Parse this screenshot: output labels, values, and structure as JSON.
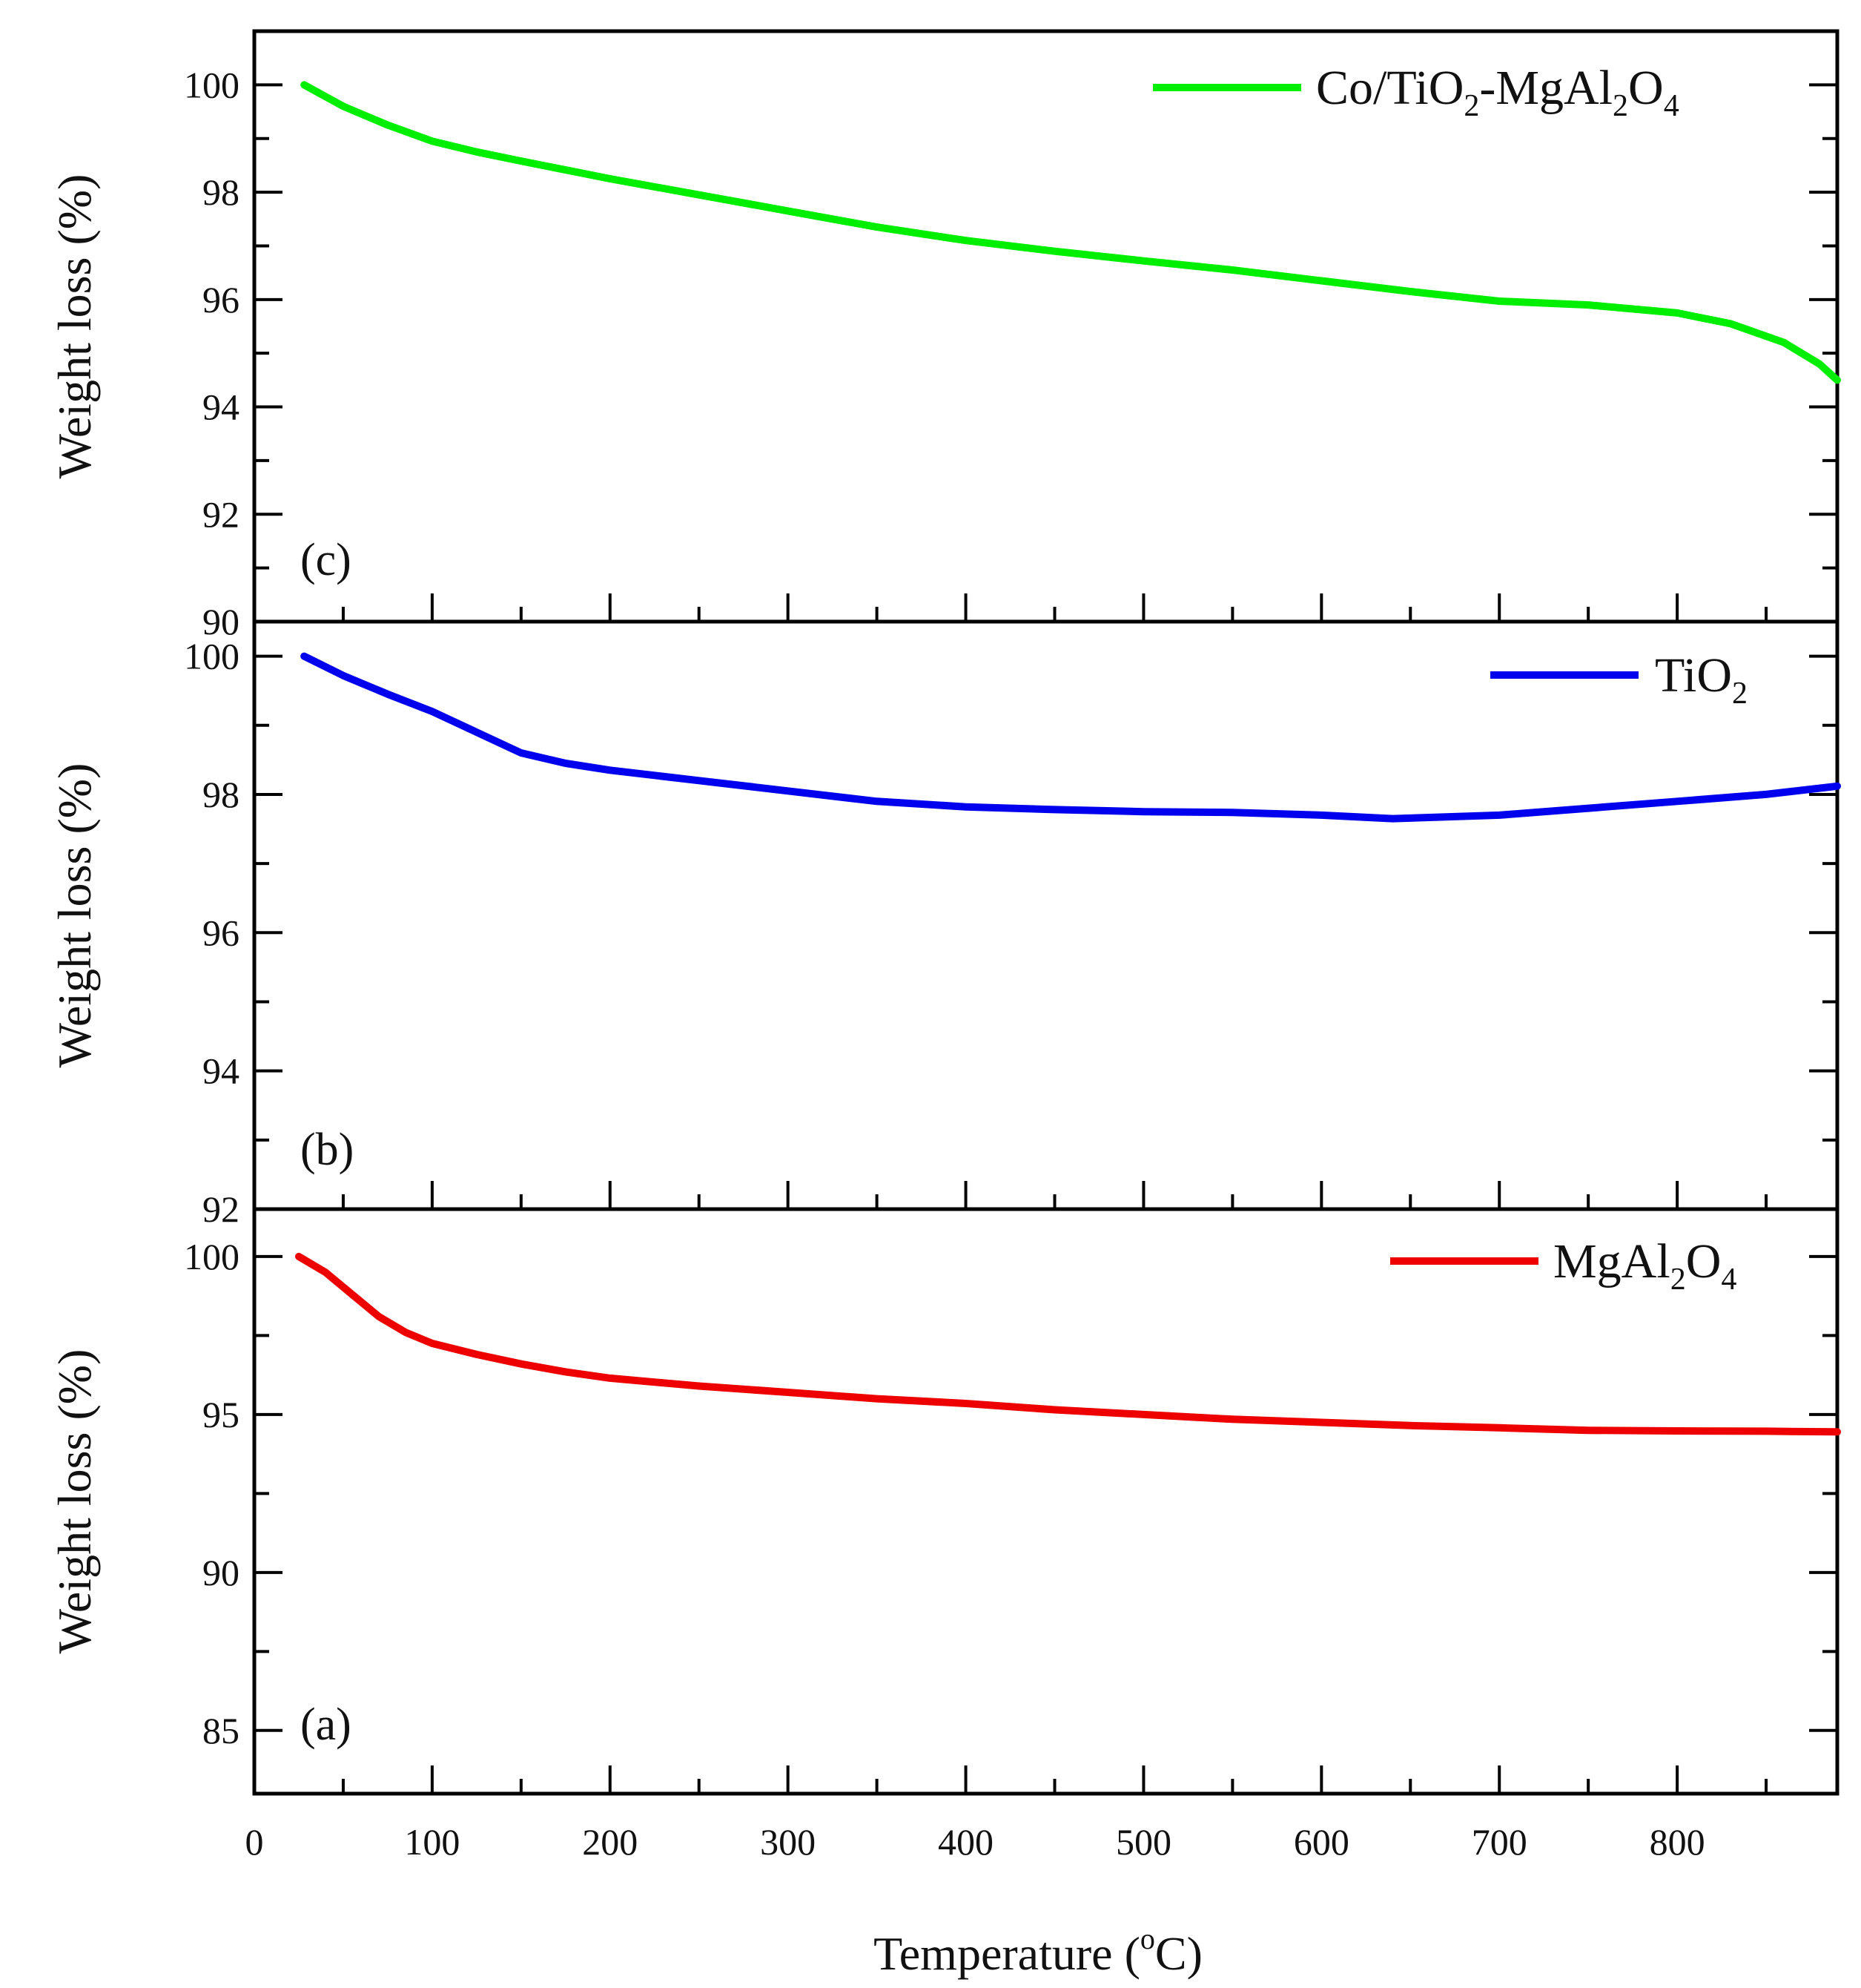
{
  "chart_data": {
    "type": "line",
    "xlabel": "Temperature",
    "xlabel_unit_sup": "o",
    "xlabel_unit_tail": "C)",
    "xlabel_unit_open": " (",
    "xlim": [
      0,
      890
    ],
    "xticks": [
      "0",
      "100",
      "200",
      "300",
      "400",
      "500",
      "600",
      "700",
      "800"
    ],
    "panels": [
      {
        "id": "c",
        "label": "(c)",
        "ylabel": "Weight loss (%)",
        "ylim": [
          90,
          101
        ],
        "yticks": [
          "100",
          "98",
          "96",
          "94",
          "92",
          "90"
        ],
        "ytick_values": [
          100,
          98,
          96,
          94,
          92,
          90
        ],
        "series": [
          {
            "name": "Co/TiO2-MgAl2O4",
            "legend": {
              "base1": "Co/TiO",
              "sub1": "2",
              "base2": "-MgAl",
              "sub2": "2",
              "base3": "O",
              "sub3": "4"
            },
            "color": "#00ee00",
            "x": [
              28,
              50,
              75,
              100,
              125,
              150,
              200,
              250,
              300,
              350,
              400,
              450,
              500,
              550,
              600,
              650,
              700,
              750,
              800,
              830,
              860,
              880,
              890
            ],
            "y": [
              100.0,
              99.6,
              99.25,
              98.95,
              98.75,
              98.58,
              98.25,
              97.95,
              97.65,
              97.35,
              97.1,
              96.9,
              96.72,
              96.55,
              96.35,
              96.15,
              95.97,
              95.9,
              95.75,
              95.55,
              95.2,
              94.8,
              94.5
            ]
          }
        ]
      },
      {
        "id": "b",
        "label": "(b)",
        "ylabel": "Weight loss (%)",
        "ylim": [
          92,
          100.5
        ],
        "yticks": [
          "100",
          "98",
          "96",
          "94",
          "92"
        ],
        "ytick_values": [
          100,
          98,
          96,
          94,
          92
        ],
        "series": [
          {
            "name": "TiO2",
            "legend": {
              "base1": "TiO",
              "sub1": "2"
            },
            "color": "#0000ee",
            "x": [
              28,
              50,
              75,
              100,
              125,
              150,
              175,
              200,
              250,
              300,
              350,
              400,
              450,
              500,
              550,
              600,
              640,
              700,
              750,
              800,
              850,
              890
            ],
            "y": [
              100.0,
              99.72,
              99.45,
              99.2,
              98.9,
              98.6,
              98.45,
              98.35,
              98.2,
              98.05,
              97.9,
              97.82,
              97.78,
              97.75,
              97.74,
              97.7,
              97.65,
              97.7,
              97.8,
              97.9,
              98.0,
              98.12
            ]
          }
        ]
      },
      {
        "id": "a",
        "label": "(a)",
        "ylabel": "Weight loss (%)",
        "ylim": [
          83,
          101.5
        ],
        "yticks": [
          "100",
          "95",
          "90",
          "85"
        ],
        "ytick_values": [
          100,
          95,
          90,
          85
        ],
        "series": [
          {
            "name": "MgAl2O4",
            "legend": {
              "base1": "MgAl",
              "sub1": "2",
              "base2": "O",
              "sub2": "4"
            },
            "color": "#ee0000",
            "x": [
              25,
              40,
              55,
              70,
              85,
              100,
              125,
              150,
              175,
              200,
              250,
              300,
              350,
              400,
              450,
              500,
              550,
              600,
              650,
              700,
              750,
              800,
              850,
              890
            ],
            "y": [
              100.0,
              99.5,
              98.8,
              98.1,
              97.6,
              97.25,
              96.9,
              96.6,
              96.35,
              96.15,
              95.9,
              95.7,
              95.5,
              95.35,
              95.15,
              95.0,
              94.85,
              94.75,
              94.65,
              94.58,
              94.5,
              94.48,
              94.47,
              94.45
            ]
          }
        ]
      }
    ]
  }
}
